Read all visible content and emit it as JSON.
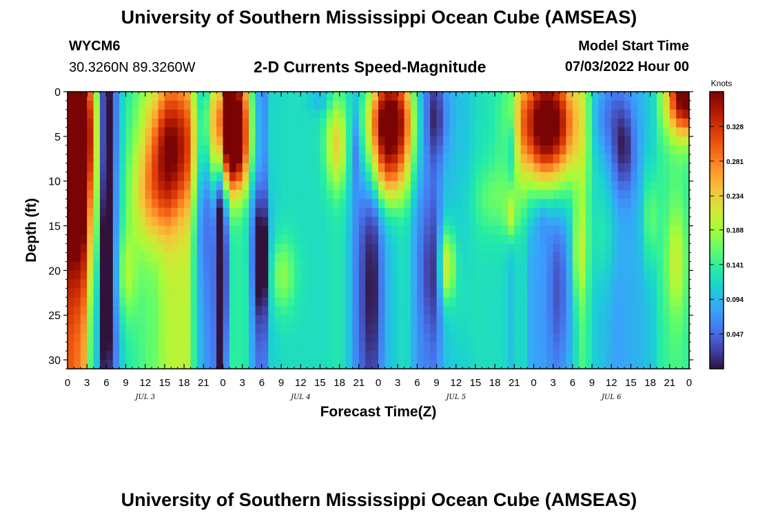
{
  "header": {
    "title": "University of Southern Mississippi Ocean Cube (AMSEAS)",
    "station": "WYCM6",
    "location": "30.3260N  89.3260W",
    "subtitle": "2-D Currents Speed-Magnitude",
    "model_start_label": "Model Start Time",
    "model_start_value": "07/03/2022 Hour 00"
  },
  "footer": {
    "title": "University of Southern Mississippi Ocean Cube (AMSEAS)"
  },
  "chart_data": {
    "type": "heatmap",
    "title": "2-D Currents Speed-Magnitude",
    "xlabel": "Forecast Time(Z)",
    "ylabel": "Depth (ft)",
    "x_hours": [
      0,
      96
    ],
    "y_depth_ft": [
      0,
      31
    ],
    "x_tick_labels": [
      "0",
      "3",
      "6",
      "9",
      "12",
      "15",
      "18",
      "21",
      "0",
      "3",
      "6",
      "9",
      "12",
      "15",
      "18",
      "21",
      "0",
      "3",
      "6",
      "9",
      "12",
      "15",
      "18",
      "21",
      "0",
      "3",
      "6",
      "9",
      "12",
      "15",
      "18",
      "21",
      "0"
    ],
    "date_labels": [
      {
        "label": "JUL 3",
        "hour": 12
      },
      {
        "label": "JUL 4",
        "hour": 36
      },
      {
        "label": "JUL 5",
        "hour": 60
      },
      {
        "label": "JUL 6",
        "hour": 84
      }
    ],
    "y_ticks": [
      0,
      5,
      10,
      15,
      20,
      25,
      30
    ],
    "colorbar": {
      "label": "Knots",
      "min": 0.0,
      "max": 0.375,
      "ticks": [
        "0.328",
        "0.281",
        "0.234",
        "0.188",
        "0.141",
        "0.094",
        "0.047"
      ]
    },
    "hotspots": [
      {
        "t": 1.5,
        "d": 4,
        "st": 2.0,
        "sd": 5.5,
        "a": 0.28
      },
      {
        "t": 2,
        "d": 15,
        "st": 2.5,
        "sd": 6,
        "a": 0.1
      },
      {
        "t": 6,
        "d": 19,
        "st": 0.8,
        "sd": 9,
        "a": -0.12
      },
      {
        "t": 6.2,
        "d": 2,
        "st": 0.8,
        "sd": 6,
        "a": -0.06
      },
      {
        "t": 9,
        "d": 20.5,
        "st": 1.2,
        "sd": 3.5,
        "a": 0.06
      },
      {
        "t": 16,
        "d": 6,
        "st": 2.8,
        "sd": 5,
        "a": 0.17
      },
      {
        "t": 13,
        "d": 12,
        "st": 2.5,
        "sd": 4,
        "a": 0.08
      },
      {
        "t": 21,
        "d": 8,
        "st": 0.7,
        "sd": 9,
        "a": -0.05
      },
      {
        "t": 24,
        "d": 20,
        "st": 0.8,
        "sd": 11,
        "a": -0.1
      },
      {
        "t": 25,
        "d": 3,
        "st": 2.2,
        "sd": 4.5,
        "a": 0.32
      },
      {
        "t": 26,
        "d": 8,
        "st": 2.0,
        "sd": 3,
        "a": 0.1
      },
      {
        "t": 30,
        "d": 19,
        "st": 0.9,
        "sd": 4.5,
        "a": -0.1
      },
      {
        "t": 28,
        "d": 7,
        "st": 1.0,
        "sd": 5,
        "a": -0.03
      },
      {
        "t": 33,
        "d": 20.5,
        "st": 1.6,
        "sd": 3,
        "a": 0.06
      },
      {
        "t": 41.5,
        "d": 6,
        "st": 1.2,
        "sd": 3.5,
        "a": 0.1
      },
      {
        "t": 44.5,
        "d": 6,
        "st": 0.6,
        "sd": 3,
        "a": -0.05
      },
      {
        "t": 39,
        "d": 1,
        "st": 1.2,
        "sd": 1,
        "a": -0.03
      },
      {
        "t": 49.5,
        "d": 3.5,
        "st": 2.6,
        "sd": 4.5,
        "a": 0.32
      },
      {
        "t": 49.5,
        "d": 10,
        "st": 2.0,
        "sd": 2.5,
        "a": 0.06
      },
      {
        "t": 47,
        "d": 22,
        "st": 1.3,
        "sd": 8,
        "a": -0.05
      },
      {
        "t": 57,
        "d": 3,
        "st": 1.4,
        "sd": 3.5,
        "a": -0.06
      },
      {
        "t": 56.5,
        "d": 20,
        "st": 1.3,
        "sd": 5,
        "a": -0.05
      },
      {
        "t": 58.5,
        "d": 19.5,
        "st": 0.9,
        "sd": 3,
        "a": 0.12
      },
      {
        "t": 61,
        "d": 23,
        "st": 1.5,
        "sd": 6,
        "a": 0.02
      },
      {
        "t": 66,
        "d": 12,
        "st": 2.5,
        "sd": 3,
        "a": 0.04
      },
      {
        "t": 68.5,
        "d": 6,
        "st": 0.6,
        "sd": 2.5,
        "a": -0.04
      },
      {
        "t": 68.5,
        "d": 14,
        "st": 0.6,
        "sd": 2,
        "a": 0.07
      },
      {
        "t": 74,
        "d": 3.5,
        "st": 3.2,
        "sd": 5,
        "a": 0.34
      },
      {
        "t": 73.5,
        "d": 14,
        "st": 0.8,
        "sd": 2,
        "a": -0.03
      },
      {
        "t": 76,
        "d": 22,
        "st": 1.2,
        "sd": 7,
        "a": -0.05
      },
      {
        "t": 79,
        "d": 18,
        "st": 0.8,
        "sd": 4,
        "a": 0.06
      },
      {
        "t": 83,
        "d": 16,
        "st": 1.5,
        "sd": 4,
        "a": 0.03
      },
      {
        "t": 86,
        "d": 6.5,
        "st": 1.2,
        "sd": 3.5,
        "a": -0.07
      },
      {
        "t": 83,
        "d": 3,
        "st": 2,
        "sd": 3,
        "a": -0.04
      },
      {
        "t": 90,
        "d": 14,
        "st": 0.8,
        "sd": 4,
        "a": 0.06
      },
      {
        "t": 94,
        "d": 19,
        "st": 1,
        "sd": 4,
        "a": 0.06
      },
      {
        "t": 95.5,
        "d": 0.5,
        "st": 2,
        "sd": 3,
        "a": 0.26
      }
    ],
    "columns": [
      {
        "t": 0,
        "v": 0.3
      },
      {
        "t": 2,
        "v": 0.28
      },
      {
        "t": 4,
        "v": 0.13
      },
      {
        "t": 5.5,
        "v": 0.05
      },
      {
        "t": 7,
        "v": 0.06
      },
      {
        "t": 8.5,
        "v": 0.11
      },
      {
        "t": 10,
        "v": 0.14
      },
      {
        "t": 13,
        "v": 0.16
      },
      {
        "t": 16,
        "v": 0.2
      },
      {
        "t": 18.5,
        "v": 0.2
      },
      {
        "t": 20,
        "v": 0.12
      },
      {
        "t": 21,
        "v": 0.07
      },
      {
        "t": 22,
        "v": 0.08
      },
      {
        "t": 23.5,
        "v": 0.04
      },
      {
        "t": 25,
        "v": 0.15
      },
      {
        "t": 27.5,
        "v": 0.13
      },
      {
        "t": 29,
        "v": 0.07
      },
      {
        "t": 30,
        "v": 0.04
      },
      {
        "t": 31.5,
        "v": 0.11
      },
      {
        "t": 34,
        "v": 0.12
      },
      {
        "t": 37,
        "v": 0.12
      },
      {
        "t": 39.5,
        "v": 0.12
      },
      {
        "t": 42,
        "v": 0.13
      },
      {
        "t": 43.5,
        "v": 0.1
      },
      {
        "t": 45,
        "v": 0.06
      },
      {
        "t": 47,
        "v": 0.05
      },
      {
        "t": 49.5,
        "v": 0.1
      },
      {
        "t": 52,
        "v": 0.12
      },
      {
        "t": 54.5,
        "v": 0.07
      },
      {
        "t": 56.5,
        "v": 0.06
      },
      {
        "t": 58.5,
        "v": 0.1
      },
      {
        "t": 61,
        "v": 0.1
      },
      {
        "t": 64,
        "v": 0.12
      },
      {
        "t": 67,
        "v": 0.12
      },
      {
        "t": 68.5,
        "v": 0.1
      },
      {
        "t": 70,
        "v": 0.12
      },
      {
        "t": 72,
        "v": 0.08
      },
      {
        "t": 75,
        "v": 0.08
      },
      {
        "t": 77.5,
        "v": 0.1
      },
      {
        "t": 79.5,
        "v": 0.15
      },
      {
        "t": 82,
        "v": 0.1
      },
      {
        "t": 85,
        "v": 0.08
      },
      {
        "t": 88,
        "v": 0.09
      },
      {
        "t": 90,
        "v": 0.1
      },
      {
        "t": 92,
        "v": 0.14
      },
      {
        "t": 94,
        "v": 0.15
      },
      {
        "t": 96,
        "v": 0.14
      }
    ]
  }
}
